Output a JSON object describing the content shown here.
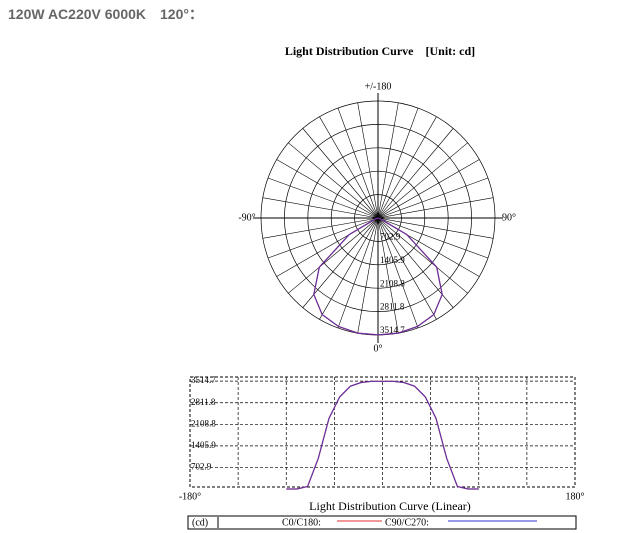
{
  "page_title": "120W AC220V 6000K　120°：",
  "chart_data": [
    {
      "type": "polar",
      "title": "Light Distribution Curve　[Unit: cd]",
      "angle_labels": [
        {
          "value": 180,
          "label": "+/-180"
        },
        {
          "value": -90,
          "label": "-90°"
        },
        {
          "value": 90,
          "label": "90°"
        },
        {
          "value": 0,
          "label": "0°"
        }
      ],
      "rlim": [
        0,
        3514.7
      ],
      "rticks": [
        702.9,
        1405.9,
        2108.8,
        2811.8,
        3514.7
      ],
      "angles": [
        -90,
        -80,
        -70,
        -60,
        -50,
        -40,
        -30,
        -20,
        -10,
        0,
        10,
        20,
        30,
        40,
        50,
        60,
        70,
        80,
        90
      ],
      "series": [
        {
          "color": "#e03030",
          "values": [
            0,
            0,
            80,
            1000,
            2300,
            3000,
            3350,
            3470,
            3510,
            3510,
            3510,
            3470,
            3350,
            3000,
            2300,
            1000,
            80,
            0,
            0
          ]
        },
        {
          "color": "#3030d0",
          "values": [
            0,
            0,
            80,
            1000,
            2300,
            3000,
            3350,
            3470,
            3510,
            3510,
            3510,
            3470,
            3350,
            3000,
            2300,
            1000,
            80,
            0,
            0
          ]
        }
      ]
    },
    {
      "type": "line",
      "title": "Light Distribution Curve (Linear)",
      "legend_title": "(cd)",
      "x": [
        -90,
        -80,
        -70,
        -60,
        -50,
        -40,
        -30,
        -20,
        -10,
        0,
        10,
        20,
        30,
        40,
        50,
        60,
        70,
        80,
        90
      ],
      "xlim": [
        -180,
        180
      ],
      "xticks": [
        {
          "value": -180,
          "label": "-180°"
        },
        {
          "value": 180,
          "label": "180°"
        }
      ],
      "ylim": [
        0,
        3650
      ],
      "yticks": [
        702.9,
        1405.9,
        2108.8,
        2811.8,
        3514.7
      ],
      "grid": true,
      "series": [
        {
          "name": "C0/C180:",
          "color": "#e03030",
          "values": [
            0,
            0,
            80,
            1000,
            2300,
            3000,
            3350,
            3470,
            3510,
            3510,
            3510,
            3470,
            3350,
            3000,
            2300,
            1000,
            80,
            0,
            0
          ]
        },
        {
          "name": "C90/C270:",
          "color": "#3030d0",
          "values": [
            0,
            0,
            80,
            1000,
            2300,
            3000,
            3350,
            3470,
            3510,
            3510,
            3510,
            3470,
            3350,
            3000,
            2300,
            1000,
            80,
            0,
            0
          ]
        }
      ]
    }
  ]
}
